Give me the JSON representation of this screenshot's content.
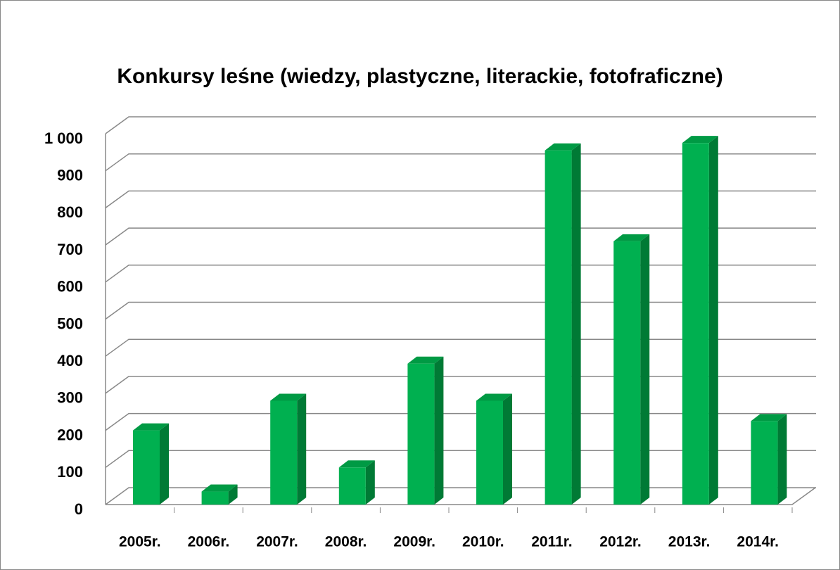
{
  "chart_data": {
    "type": "bar3d",
    "title": "Konkursy leśne (wiedzy, plastyczne, literackie, fotofraficzne)",
    "categories": [
      "2005r.",
      "2006r.",
      "2007r.",
      "2008r.",
      "2009r.",
      "2010r.",
      "2011r.",
      "2012r.",
      "2013r.",
      "2014r."
    ],
    "values": [
      200,
      35,
      280,
      100,
      380,
      280,
      955,
      710,
      975,
      225
    ],
    "color": "#00b050",
    "ylim": [
      0,
      1000
    ],
    "yticks": [
      0,
      100,
      200,
      300,
      400,
      500,
      600,
      700,
      800,
      900,
      {
        "value": 1000,
        "label": "1 000"
      }
    ],
    "grid": true
  }
}
